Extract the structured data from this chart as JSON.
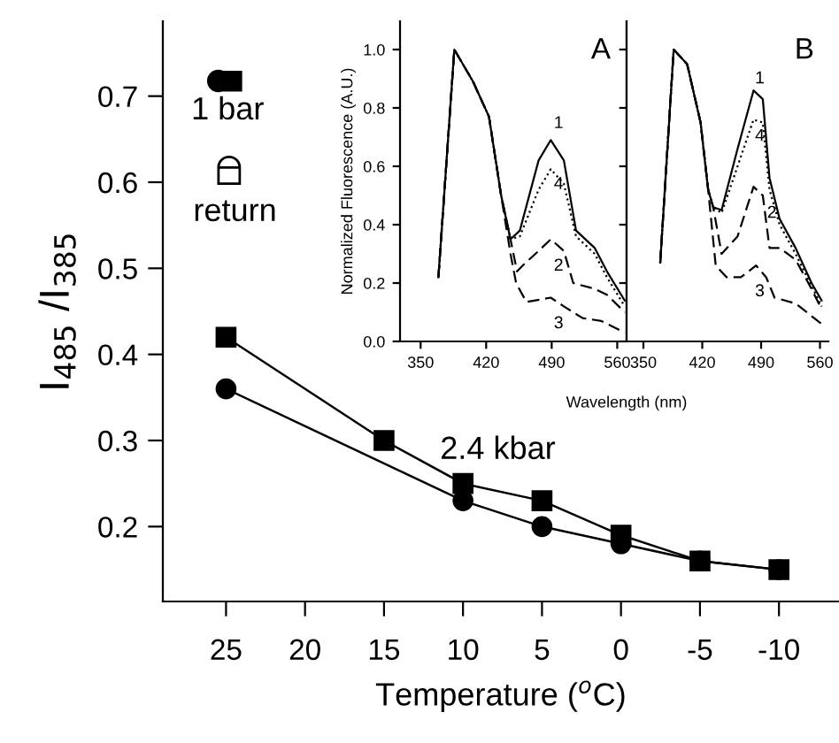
{
  "chart_data": [
    {
      "type": "line",
      "xlabel": "Temperature ($^{o}$C)",
      "ylabel": "I$_{485}$ /I$_{385}$",
      "xlim": [
        29,
        -13.8
      ],
      "ylim": [
        0.113,
        0.787
      ],
      "xticks": [
        25,
        20,
        15,
        10,
        5,
        0,
        -5,
        -10
      ],
      "yticks": [
        0.2,
        0.3,
        0.4,
        0.5,
        0.6,
        0.7
      ],
      "grid": false,
      "legend": false,
      "annotations": [
        "1 bar",
        "return",
        "2.4 kbar"
      ],
      "series": [
        {
          "color": "#000000",
          "marker": "square",
          "line_style": "solid",
          "x": [
            25,
            15,
            10,
            5,
            0,
            -5,
            -10
          ],
          "values": [
            0.42,
            0.3,
            0.25,
            0.23,
            0.19,
            0.16,
            0.15
          ]
        },
        {
          "color": "#000000",
          "marker": "circle",
          "line_style": "solid",
          "x": [
            25,
            10,
            5,
            0,
            -5,
            -10
          ],
          "values": [
            0.36,
            0.23,
            0.2,
            0.18,
            0.16,
            0.15
          ]
        }
      ]
    },
    {
      "type": "line",
      "ylabel": "Normalized Fluorescence (A.U.)",
      "xlabel": "Wavelength (nm)",
      "xlim": [
        328,
        570
      ],
      "ylim": [
        0,
        1.097
      ],
      "xticks": [
        350,
        420,
        490,
        560
      ],
      "yticks": [
        {
          "value": 0,
          "label": "0.0"
        },
        0.2,
        0.4,
        0.6,
        0.8,
        {
          "value": 1,
          "label": "1.0"
        }
      ],
      "grid": false,
      "legend": false,
      "marker": "none",
      "annotations": [
        "A",
        "1",
        "4",
        "2",
        "3"
      ],
      "series": [
        {
          "color": "#000000",
          "line_style": "solid",
          "x": [
            369,
            386,
            406,
            423,
            436,
            446,
            456,
            476,
            489,
            503,
            516,
            536,
            549,
            568
          ],
          "values": [
            0.22,
            1.0,
            0.89,
            0.77,
            0.5,
            0.35,
            0.38,
            0.62,
            0.69,
            0.62,
            0.38,
            0.32,
            0.24,
            0.14
          ]
        },
        {
          "color": "#000000",
          "line_style": "dotted",
          "x": [
            369,
            386,
            406,
            423,
            436,
            446,
            456,
            476,
            489,
            503,
            516,
            536,
            549,
            568
          ],
          "values": [
            0.22,
            1.0,
            0.89,
            0.77,
            0.5,
            0.35,
            0.36,
            0.52,
            0.59,
            0.54,
            0.36,
            0.3,
            0.22,
            0.12
          ]
        },
        {
          "color": "#000000",
          "line_style": "dashed",
          "x": [
            369,
            386,
            406,
            423,
            436,
            446,
            453,
            459,
            476,
            489,
            503,
            513,
            536,
            549,
            568
          ],
          "values": [
            0.22,
            1.0,
            0.89,
            0.77,
            0.5,
            0.35,
            0.24,
            0.26,
            0.31,
            0.35,
            0.31,
            0.2,
            0.18,
            0.16,
            0.1
          ]
        },
        {
          "color": "#000000",
          "line_style": "dashed",
          "x": [
            369,
            386,
            406,
            423,
            436,
            446,
            452,
            463,
            489,
            503,
            523,
            543,
            568
          ],
          "values": [
            0.22,
            1.0,
            0.89,
            0.77,
            0.5,
            0.3,
            0.2,
            0.135,
            0.15,
            0.12,
            0.08,
            0.07,
            0.03
          ]
        }
      ]
    },
    {
      "type": "line",
      "xlim": [
        330,
        570
      ],
      "ylim": [
        0,
        1.097
      ],
      "xticks": [
        350,
        420,
        490,
        560
      ],
      "yticks": [
        0,
        0.2,
        0.4,
        0.6,
        0.8,
        1
      ],
      "tick_labels": "x",
      "grid": false,
      "legend": false,
      "marker": "none",
      "annotations": [
        "B",
        "1",
        "4",
        "2",
        "3"
      ],
      "series": [
        {
          "color": "#000000",
          "line_style": "solid",
          "x": [
            370,
            386,
            402,
            418,
            427,
            433,
            443,
            462,
            481,
            492,
            500,
            512,
            531,
            550,
            562
          ],
          "values": [
            0.27,
            1.0,
            0.95,
            0.75,
            0.52,
            0.46,
            0.45,
            0.66,
            0.86,
            0.83,
            0.56,
            0.42,
            0.32,
            0.2,
            0.14
          ]
        },
        {
          "color": "#000000",
          "line_style": "dotted",
          "x": [
            370,
            386,
            402,
            418,
            427,
            433,
            443,
            462,
            481,
            492,
            500,
            512,
            531,
            550,
            562
          ],
          "values": [
            0.27,
            1.0,
            0.95,
            0.75,
            0.52,
            0.46,
            0.44,
            0.6,
            0.76,
            0.75,
            0.52,
            0.4,
            0.3,
            0.19,
            0.12
          ]
        },
        {
          "color": "#000000",
          "line_style": "dashed",
          "x": [
            370,
            386,
            402,
            418,
            427,
            433,
            443,
            462,
            481,
            492,
            500,
            512,
            531,
            550,
            562
          ],
          "values": [
            0.27,
            1.0,
            0.95,
            0.75,
            0.52,
            0.46,
            0.3,
            0.36,
            0.53,
            0.5,
            0.32,
            0.32,
            0.28,
            0.18,
            0.11
          ]
        },
        {
          "color": "#000000",
          "line_style": "dashed",
          "x": [
            370,
            386,
            402,
            418,
            427,
            436,
            449,
            466,
            484,
            496,
            506,
            531,
            562
          ],
          "values": [
            0.27,
            1.0,
            0.95,
            0.75,
            0.52,
            0.26,
            0.22,
            0.22,
            0.26,
            0.22,
            0.15,
            0.13,
            0.06
          ]
        }
      ]
    }
  ]
}
